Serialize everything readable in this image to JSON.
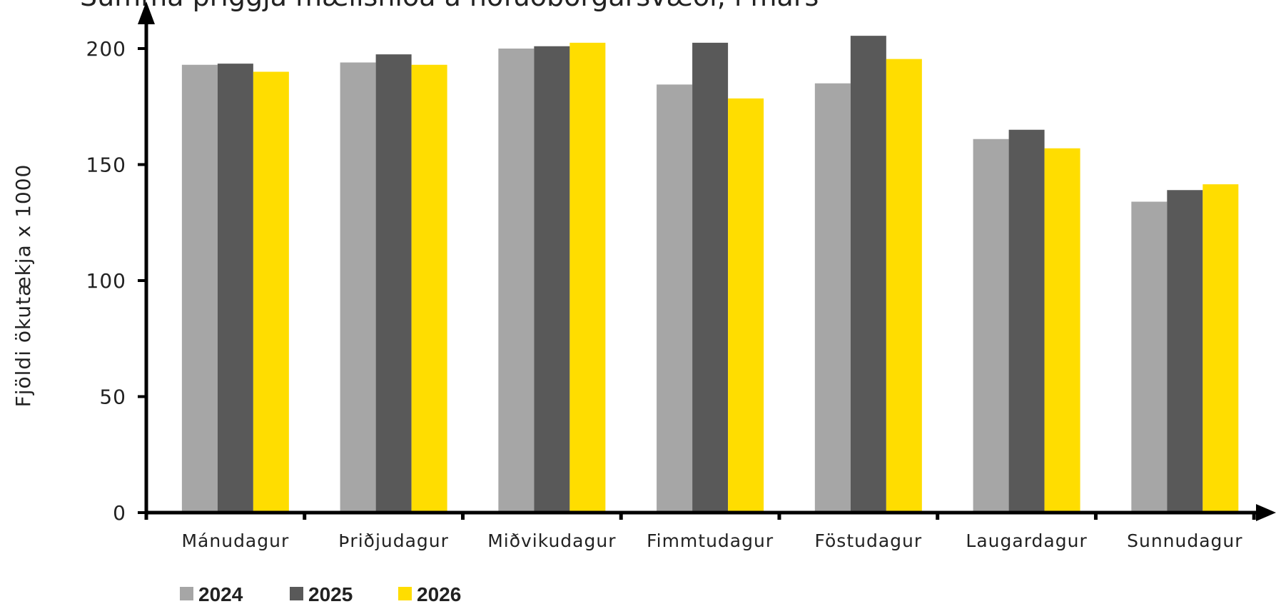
{
  "chart_data": {
    "type": "bar",
    "title": "Summa þriggja mælisniða á höfuðborgarsvæði, í mars",
    "ylabel": "Fjöldi ökutækja x 1000",
    "xlabel": "",
    "ylim": [
      0,
      200
    ],
    "yticks": [
      0,
      50,
      100,
      150,
      200
    ],
    "categories": [
      "Mánudagur",
      "Þriðjudagur",
      "Miðvikudagur",
      "Fimmtudagur",
      "Föstudagur",
      "Laugardagur",
      "Sunnudagur"
    ],
    "series": [
      {
        "name": "2024",
        "color": "#a6a6a6",
        "values": [
          193,
          194,
          200,
          184.5,
          185,
          161,
          134
        ]
      },
      {
        "name": "2025",
        "color": "#595959",
        "values": [
          193.5,
          197.5,
          201,
          202.5,
          205.5,
          165,
          139
        ]
      },
      {
        "name": "2026",
        "color": "#ffdd00",
        "values": [
          190,
          193,
          202.5,
          178.5,
          195.5,
          157,
          141.5
        ]
      }
    ],
    "grid": false,
    "legend": "bottom-left"
  }
}
